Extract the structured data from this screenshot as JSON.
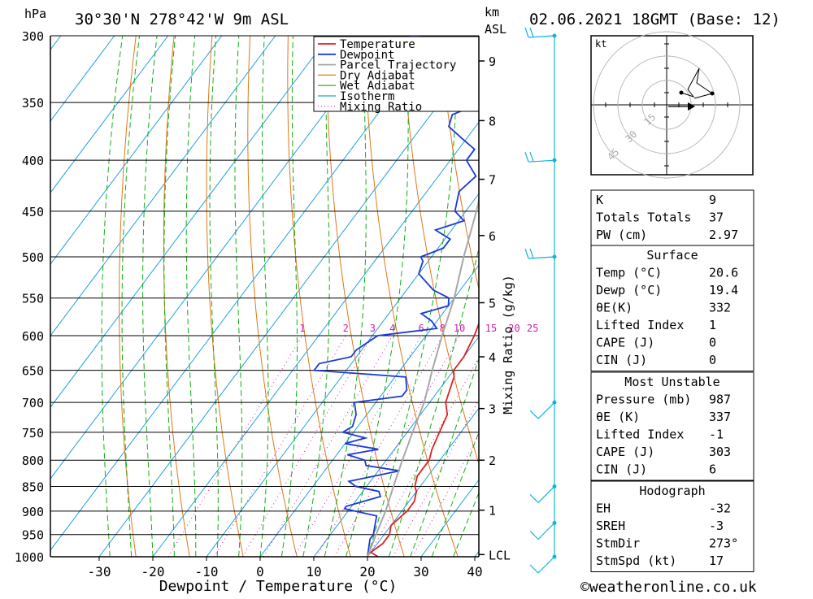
{
  "header": {
    "pressure_unit": "hPa",
    "km_unit": "km",
    "asl_label": "ASL",
    "location": "30°30'N  278°42'W  9m  ASL",
    "datetime": "02.06.2021  18GMT  (Base: 12)"
  },
  "colors": {
    "temperature": "#e02020",
    "dewpoint": "#1a3ad8",
    "parcel": "#a8a8a8",
    "dry_adiabat": "#e07818",
    "wet_adiabat": "#10b010",
    "isotherm": "#20a0e0",
    "mixing_ratio": "#d020b0",
    "wind": "#10b4d8"
  },
  "chart_data": {
    "type": "line",
    "title": "",
    "xlabel": "Dewpoint / Temperature (°C)",
    "ylabel": "hPa",
    "right_label": "Mixing Ratio (g/kg)",
    "xlim": [
      -40,
      40
    ],
    "ylim": [
      1000,
      300
    ],
    "x_ticks": [
      "-30",
      "-20",
      "-10",
      "0",
      "10",
      "20",
      "30",
      "40"
    ],
    "pressure_levels": [
      300,
      350,
      400,
      450,
      500,
      550,
      600,
      650,
      700,
      750,
      800,
      850,
      900,
      950,
      1000
    ],
    "km_ticks": [
      {
        "label": "9",
        "p": 318
      },
      {
        "label": "8",
        "p": 365
      },
      {
        "label": "7",
        "p": 418
      },
      {
        "label": "6",
        "p": 476
      },
      {
        "label": "5",
        "p": 556
      },
      {
        "label": "4",
        "p": 630
      },
      {
        "label": "3",
        "p": 710
      },
      {
        "label": "2",
        "p": 800
      },
      {
        "label": "1",
        "p": 898
      },
      {
        "label": "LCL",
        "p": 995
      }
    ],
    "mixing_ratio_labels": [
      "1",
      "2",
      "3",
      "4",
      "6",
      "8",
      "10",
      "15",
      "20",
      "25"
    ],
    "legend": [
      "Temperature",
      "Dewpoint",
      "Parcel Trajectory",
      "Dry Adiabat",
      "Wet Adiabat",
      "Isotherm",
      "Mixing Ratio"
    ],
    "legend_position": "top-right",
    "series": [
      {
        "name": "Temperature",
        "points": [
          [
            1000,
            22
          ],
          [
            990,
            20
          ],
          [
            970,
            21
          ],
          [
            950,
            21
          ],
          [
            930,
            20
          ],
          [
            900,
            21
          ],
          [
            880,
            21
          ],
          [
            860,
            20
          ],
          [
            850,
            19
          ],
          [
            830,
            18
          ],
          [
            800,
            18
          ],
          [
            780,
            17
          ],
          [
            750,
            16
          ],
          [
            720,
            15
          ],
          [
            700,
            13
          ],
          [
            680,
            12
          ],
          [
            660,
            11
          ],
          [
            650,
            10
          ],
          [
            630,
            10
          ],
          [
            600,
            9
          ],
          [
            580,
            8
          ],
          [
            560,
            8
          ],
          [
            550,
            7
          ],
          [
            520,
            5
          ],
          [
            500,
            4
          ],
          [
            480,
            2
          ],
          [
            460,
            1
          ],
          [
            440,
            -1
          ],
          [
            420,
            -3
          ],
          [
            400,
            -5
          ],
          [
            380,
            -7
          ],
          [
            360,
            -9
          ],
          [
            350,
            -11
          ],
          [
            330,
            -14
          ],
          [
            320,
            -16
          ],
          [
            300,
            -19
          ]
        ]
      },
      {
        "name": "Dewpoint",
        "points": [
          [
            1000,
            20
          ],
          [
            980,
            19
          ],
          [
            960,
            18
          ],
          [
            950,
            18
          ],
          [
            930,
            17
          ],
          [
            910,
            16
          ],
          [
            895,
            9
          ],
          [
            890,
            9
          ],
          [
            870,
            14
          ],
          [
            860,
            13
          ],
          [
            850,
            8
          ],
          [
            840,
            6
          ],
          [
            830,
            10
          ],
          [
            820,
            14
          ],
          [
            810,
            7
          ],
          [
            800,
            6
          ],
          [
            790,
            2
          ],
          [
            780,
            7
          ],
          [
            770,
            0
          ],
          [
            760,
            3
          ],
          [
            750,
            -2
          ],
          [
            740,
            -1
          ],
          [
            720,
            -2
          ],
          [
            700,
            -4
          ],
          [
            690,
            4
          ],
          [
            680,
            4
          ],
          [
            670,
            3
          ],
          [
            660,
            2
          ],
          [
            650,
            -16
          ],
          [
            640,
            -16
          ],
          [
            630,
            -11
          ],
          [
            620,
            -11
          ],
          [
            600,
            -9
          ],
          [
            590,
            1
          ],
          [
            580,
            -1
          ],
          [
            570,
            -4
          ],
          [
            560,
            0
          ],
          [
            550,
            -1
          ],
          [
            540,
            -5
          ],
          [
            520,
            -10
          ],
          [
            505,
            -11
          ],
          [
            500,
            -12
          ],
          [
            490,
            -9
          ],
          [
            480,
            -9
          ],
          [
            470,
            -13
          ],
          [
            460,
            -9
          ],
          [
            450,
            -12
          ],
          [
            430,
            -14
          ],
          [
            415,
            -13
          ],
          [
            400,
            -17
          ],
          [
            390,
            -17
          ],
          [
            380,
            -21
          ],
          [
            370,
            -25
          ],
          [
            360,
            -26
          ],
          [
            350,
            -22
          ],
          [
            340,
            -23
          ],
          [
            330,
            -29
          ],
          [
            320,
            -29
          ],
          [
            315,
            -37
          ],
          [
            310,
            -35
          ],
          [
            305,
            -30
          ],
          [
            300,
            -45
          ]
        ]
      },
      {
        "name": "Parcel Trajectory",
        "points": [
          [
            1000,
            20
          ],
          [
            950,
            18.5
          ],
          [
            900,
            17
          ],
          [
            850,
            15
          ],
          [
            800,
            13
          ],
          [
            750,
            11
          ],
          [
            700,
            9
          ],
          [
            650,
            6
          ],
          [
            600,
            3
          ],
          [
            550,
            0
          ],
          [
            500,
            -4
          ],
          [
            450,
            -8
          ],
          [
            400,
            -13
          ],
          [
            350,
            -19
          ],
          [
            300,
            -26
          ]
        ]
      }
    ]
  },
  "hodograph": {
    "unit": "kt",
    "ring_labels": [
      "15",
      "30",
      "45"
    ]
  },
  "indices": {
    "k_label": "K",
    "k_value": "9",
    "tt_label": "Totals Totals",
    "tt_value": "37",
    "pw_label": "PW (cm)",
    "pw_value": "2.97"
  },
  "surface": {
    "title": "Surface",
    "temp_label": "Temp (°C)",
    "temp_value": "20.6",
    "dewp_label": "Dewp (°C)",
    "dewp_value": "19.4",
    "theta_label": "θE(K)",
    "theta_value": "332",
    "li_label": "Lifted Index",
    "li_value": "1",
    "cape_label": "CAPE (J)",
    "cape_value": "0",
    "cin_label": "CIN (J)",
    "cin_value": "0"
  },
  "most_unstable": {
    "title": "Most Unstable",
    "pressure_label": "Pressure (mb)",
    "pressure_value": "987",
    "theta_label": "θE (K)",
    "theta_value": "337",
    "li_label": "Lifted Index",
    "li_value": "-1",
    "cape_label": "CAPE (J)",
    "cape_value": "303",
    "cin_label": "CIN (J)",
    "cin_value": "6"
  },
  "hodo_stats": {
    "title": "Hodograph",
    "eh_label": "EH",
    "eh_value": "-32",
    "sreh_label": "SREH",
    "sreh_value": "-3",
    "stmdir_label": "StmDir",
    "stmdir_value": "273°",
    "stmspd_label": "StmSpd (kt)",
    "stmspd_value": "17"
  },
  "footer": {
    "copyright": "©weatheronline.co.uk"
  }
}
